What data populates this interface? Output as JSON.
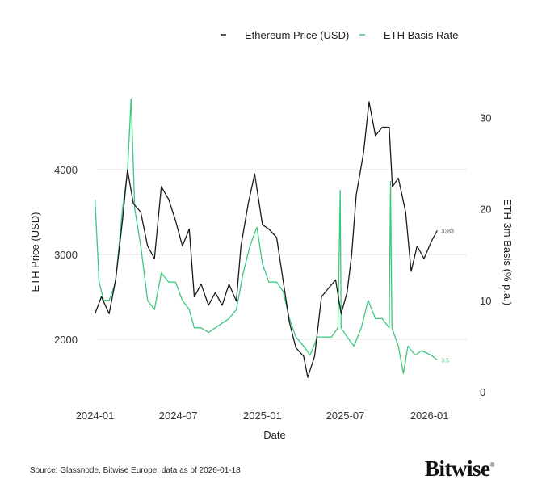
{
  "chart_data": {
    "type": "line",
    "xlabel": "Date",
    "ylabel_left": "ETH Price (USD)",
    "ylabel_right": "ETH 3m Basis (% p.a.)",
    "x_ticks": [
      "2024-01",
      "2024-07",
      "2025-01",
      "2025-07",
      "2026-01"
    ],
    "y_left_ticks": [
      2000,
      3000,
      4000
    ],
    "y_right_ticks": [
      0,
      10,
      20,
      30
    ],
    "ylim_left": [
      1380,
      4810
    ],
    "ylim_right": [
      0,
      31.8
    ],
    "xlim": [
      "2023-12-01",
      "2026-02-20"
    ],
    "grid": "horizontal on left ticks",
    "legend_position": "top-right",
    "series": [
      {
        "name": "Ethereum Price (USD)",
        "axis": "left",
        "color": "#1a1a1a",
        "end_label": "3283",
        "points": [
          [
            "2024-01-01",
            2300
          ],
          [
            "2024-01-15",
            2500
          ],
          [
            "2024-02-01",
            2300
          ],
          [
            "2024-02-15",
            2700
          ],
          [
            "2024-03-01",
            3400
          ],
          [
            "2024-03-12",
            4000
          ],
          [
            "2024-03-25",
            3600
          ],
          [
            "2024-04-10",
            3500
          ],
          [
            "2024-04-25",
            3100
          ],
          [
            "2024-05-10",
            2950
          ],
          [
            "2024-05-25",
            3800
          ],
          [
            "2024-06-10",
            3650
          ],
          [
            "2024-06-25",
            3400
          ],
          [
            "2024-07-10",
            3100
          ],
          [
            "2024-07-25",
            3300
          ],
          [
            "2024-08-05",
            2500
          ],
          [
            "2024-08-20",
            2650
          ],
          [
            "2024-09-05",
            2400
          ],
          [
            "2024-09-20",
            2550
          ],
          [
            "2024-10-05",
            2400
          ],
          [
            "2024-10-20",
            2650
          ],
          [
            "2024-11-05",
            2450
          ],
          [
            "2024-11-15",
            3100
          ],
          [
            "2024-12-01",
            3600
          ],
          [
            "2024-12-15",
            3950
          ],
          [
            "2025-01-01",
            3350
          ],
          [
            "2025-01-15",
            3300
          ],
          [
            "2025-02-01",
            3200
          ],
          [
            "2025-02-15",
            2700
          ],
          [
            "2025-03-01",
            2200
          ],
          [
            "2025-03-15",
            1900
          ],
          [
            "2025-04-01",
            1800
          ],
          [
            "2025-04-10",
            1550
          ],
          [
            "2025-04-25",
            1800
          ],
          [
            "2025-05-10",
            2500
          ],
          [
            "2025-05-25",
            2600
          ],
          [
            "2025-06-10",
            2700
          ],
          [
            "2025-06-22",
            2300
          ],
          [
            "2025-07-05",
            2550
          ],
          [
            "2025-07-15",
            3000
          ],
          [
            "2025-07-25",
            3700
          ],
          [
            "2025-08-10",
            4200
          ],
          [
            "2025-08-22",
            4800
          ],
          [
            "2025-09-05",
            4400
          ],
          [
            "2025-09-20",
            4500
          ],
          [
            "2025-10-05",
            4500
          ],
          [
            "2025-10-12",
            3800
          ],
          [
            "2025-10-25",
            3900
          ],
          [
            "2025-11-10",
            3500
          ],
          [
            "2025-11-22",
            2800
          ],
          [
            "2025-12-05",
            3100
          ],
          [
            "2025-12-20",
            2950
          ],
          [
            "2026-01-05",
            3150
          ],
          [
            "2026-01-18",
            3283
          ]
        ]
      },
      {
        "name": "ETH Basis Rate",
        "axis": "right",
        "color": "#3cc97d",
        "end_label": "3.5",
        "points": [
          [
            "2024-01-01",
            21
          ],
          [
            "2024-01-10",
            12
          ],
          [
            "2024-01-20",
            10
          ],
          [
            "2024-02-01",
            10
          ],
          [
            "2024-02-15",
            12
          ],
          [
            "2024-03-01",
            20
          ],
          [
            "2024-03-12",
            24
          ],
          [
            "2024-03-20",
            32
          ],
          [
            "2024-03-28",
            20
          ],
          [
            "2024-04-10",
            16
          ],
          [
            "2024-04-25",
            10
          ],
          [
            "2024-05-10",
            9
          ],
          [
            "2024-05-25",
            13
          ],
          [
            "2024-06-10",
            12
          ],
          [
            "2024-06-25",
            12
          ],
          [
            "2024-07-10",
            10
          ],
          [
            "2024-07-25",
            9
          ],
          [
            "2024-08-05",
            7
          ],
          [
            "2024-08-20",
            7
          ],
          [
            "2024-09-05",
            6.5
          ],
          [
            "2024-09-20",
            7
          ],
          [
            "2024-10-05",
            7.5
          ],
          [
            "2024-10-20",
            8
          ],
          [
            "2024-11-05",
            9
          ],
          [
            "2024-11-20",
            13
          ],
          [
            "2024-12-05",
            16
          ],
          [
            "2024-12-20",
            18
          ],
          [
            "2025-01-01",
            14
          ],
          [
            "2025-01-15",
            12
          ],
          [
            "2025-02-01",
            12
          ],
          [
            "2025-02-15",
            11
          ],
          [
            "2025-03-01",
            8
          ],
          [
            "2025-03-15",
            6
          ],
          [
            "2025-04-01",
            5
          ],
          [
            "2025-04-15",
            4
          ],
          [
            "2025-05-01",
            6
          ],
          [
            "2025-05-15",
            6
          ],
          [
            "2025-06-01",
            6
          ],
          [
            "2025-06-15",
            7
          ],
          [
            "2025-06-20",
            22
          ],
          [
            "2025-06-22",
            7
          ],
          [
            "2025-07-05",
            6
          ],
          [
            "2025-07-20",
            5
          ],
          [
            "2025-08-05",
            7
          ],
          [
            "2025-08-20",
            10
          ],
          [
            "2025-09-05",
            8
          ],
          [
            "2025-09-20",
            8
          ],
          [
            "2025-10-05",
            7
          ],
          [
            "2025-10-08",
            23
          ],
          [
            "2025-10-11",
            7
          ],
          [
            "2025-10-25",
            5
          ],
          [
            "2025-11-05",
            2
          ],
          [
            "2025-11-15",
            5
          ],
          [
            "2025-12-01",
            4
          ],
          [
            "2025-12-15",
            4.5
          ],
          [
            "2026-01-05",
            4
          ],
          [
            "2026-01-18",
            3.5
          ]
        ]
      }
    ]
  },
  "footer": {
    "source": "Source: Glassnode, Bitwise Europe; data as of 2026-01-18",
    "logo": "Bitwise"
  }
}
